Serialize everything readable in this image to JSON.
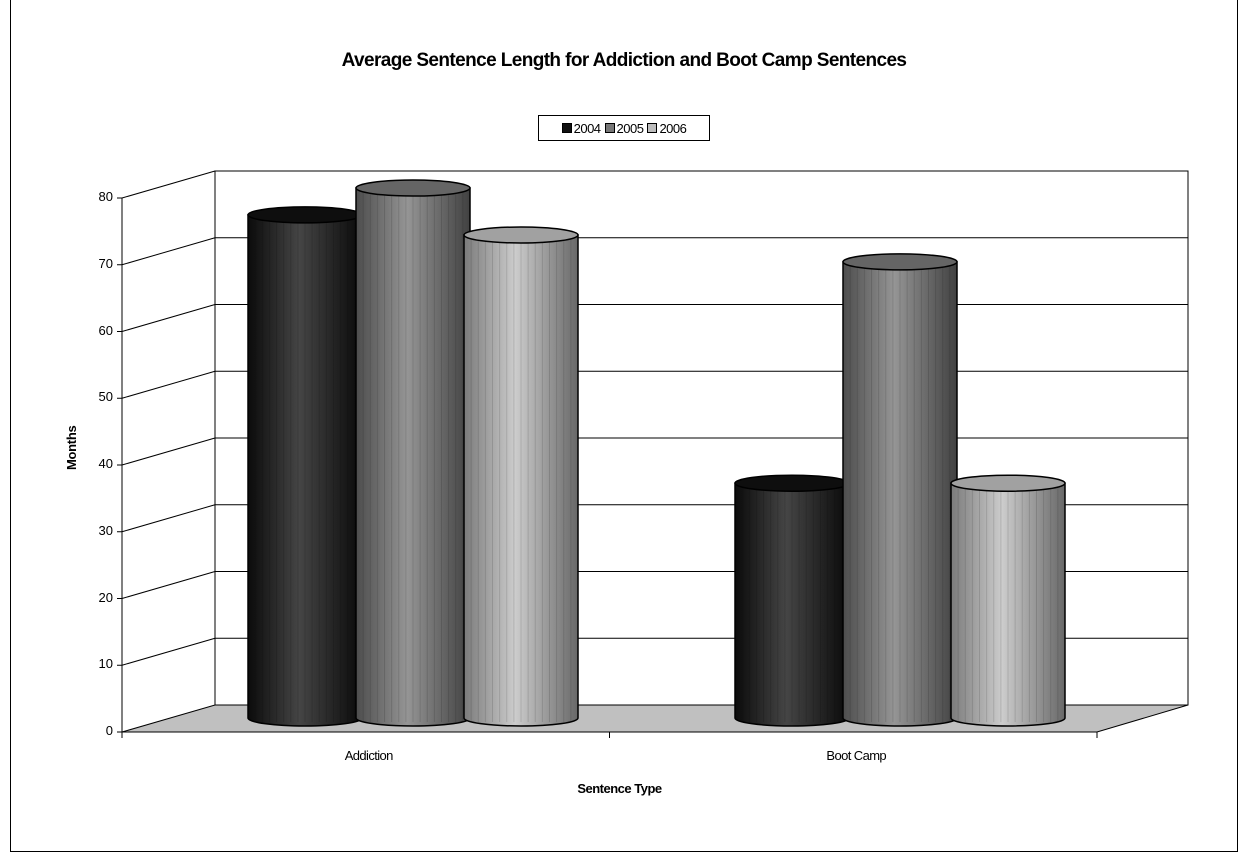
{
  "chart_data": {
    "type": "bar",
    "style": "3d-cylinder",
    "title": "Average Sentence Length for Addiction and Boot Camp Sentences",
    "xlabel": "Sentence Type",
    "ylabel": "Months",
    "categories": [
      "Addiction",
      "Boot Camp"
    ],
    "series": [
      {
        "name": "2004",
        "values": [
          75,
          35
        ],
        "color": "#111111"
      },
      {
        "name": "2005",
        "values": [
          79,
          68
        ],
        "color": "#777777"
      },
      {
        "name": "2006",
        "values": [
          72,
          35
        ],
        "color": "#bdbdbd"
      }
    ],
    "ylim": [
      0,
      80
    ],
    "yticks": [
      "0",
      "10",
      "20",
      "30",
      "40",
      "50",
      "60",
      "70",
      "80"
    ],
    "grid": true,
    "legend_position": "top-center",
    "floor_color": "#c0c0c0"
  }
}
